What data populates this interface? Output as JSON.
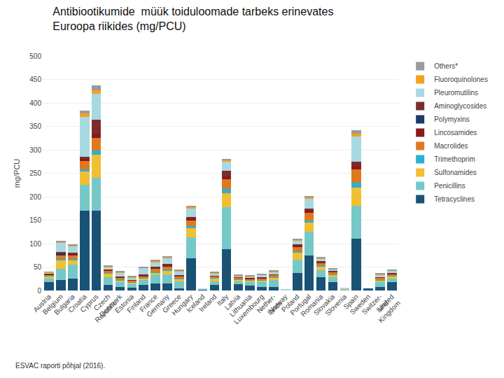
{
  "chart_data": {
    "type": "bar",
    "title": "Antibiootikumide  müük toiduloomade tarbeks erinevates\nEuroopa riikides (mg/PCU)",
    "ylabel": "mg/PCU",
    "annotations": [
      "ESVAC raporti põhjal (2016)."
    ],
    "categories": [
      "Austria",
      "Belgium",
      "Bulgaria",
      "Croatia",
      "Cyprus",
      "Czech\nRepublic",
      "Denmark",
      "Estonia",
      "Finland",
      "France",
      "Germany",
      "Greece",
      "Hungary",
      "Iceland",
      "Ireland",
      "Italy",
      "Latvia",
      "Lithuania",
      "Luxembourg",
      "Nether-\nlands",
      "Norway",
      "Poland",
      "Portugal",
      "Romania",
      "Slovakia",
      "Slovenia",
      "Spain",
      "Sweden",
      "Switzer-\nland",
      "United\nKingdom"
    ],
    "series": [
      {
        "name": "Tetracyclines",
        "color": "#1a5276",
        "values": [
          18,
          22,
          25,
          170,
          170,
          12,
          8,
          6,
          12,
          15,
          15,
          5,
          68,
          2,
          12,
          88,
          14,
          10,
          8,
          8,
          1,
          38,
          75,
          28,
          18,
          1,
          110,
          4,
          8,
          18
        ]
      },
      {
        "name": "Penicillins",
        "color": "#76c8c8",
        "values": [
          8,
          25,
          30,
          55,
          70,
          16,
          10,
          8,
          10,
          18,
          20,
          15,
          45,
          0,
          8,
          90,
          6,
          8,
          10,
          15,
          0,
          28,
          50,
          15,
          10,
          1,
          70,
          0,
          10,
          8
        ]
      },
      {
        "name": "Sulfonamides",
        "color": "#f0c030",
        "values": [
          5,
          18,
          10,
          28,
          50,
          8,
          4,
          3,
          4,
          5,
          8,
          5,
          20,
          0,
          6,
          30,
          3,
          3,
          4,
          4,
          0,
          14,
          20,
          8,
          5,
          1,
          40,
          0,
          4,
          4
        ]
      },
      {
        "name": "Trimethoprim",
        "color": "#2eafd4",
        "values": [
          1,
          2,
          2,
          5,
          8,
          2,
          2,
          1,
          1,
          2,
          2,
          1,
          5,
          0,
          1,
          8,
          1,
          1,
          1,
          2,
          0,
          3,
          5,
          2,
          2,
          0,
          10,
          0,
          1,
          1
        ]
      },
      {
        "name": "Macrolides",
        "color": "#e07820",
        "values": [
          2,
          8,
          8,
          18,
          28,
          5,
          4,
          3,
          4,
          7,
          7,
          4,
          12,
          0,
          3,
          22,
          3,
          3,
          3,
          4,
          0,
          9,
          16,
          6,
          4,
          1,
          28,
          0,
          4,
          4
        ]
      },
      {
        "name": "Lincosamides",
        "color": "#8b1a1a",
        "values": [
          1,
          2,
          2,
          4,
          8,
          1,
          1,
          1,
          1,
          2,
          2,
          1,
          3,
          0,
          1,
          5,
          1,
          1,
          1,
          1,
          0,
          3,
          4,
          2,
          1,
          0,
          8,
          0,
          1,
          1
        ]
      },
      {
        "name": "Polymyxins",
        "color": "#1a3a6a",
        "values": [
          0,
          2,
          0,
          0,
          0,
          0,
          0,
          0,
          0,
          0,
          0,
          0,
          0,
          0,
          0,
          0,
          0,
          0,
          0,
          0,
          0,
          0,
          0,
          0,
          0,
          0,
          0,
          0,
          0,
          0
        ]
      },
      {
        "name": "Aminoglycosides",
        "color": "#7b2d2d",
        "values": [
          1,
          3,
          3,
          5,
          30,
          1,
          1,
          1,
          2,
          2,
          2,
          2,
          3,
          0,
          1,
          12,
          1,
          1,
          1,
          1,
          0,
          3,
          5,
          2,
          2,
          0,
          8,
          0,
          1,
          1
        ]
      },
      {
        "name": "Pleuromutilins",
        "color": "#a8d8e0",
        "values": [
          2,
          20,
          15,
          85,
          55,
          5,
          8,
          5,
          14,
          10,
          14,
          8,
          20,
          1,
          5,
          20,
          2,
          2,
          5,
          5,
          1,
          8,
          20,
          5,
          3,
          1,
          55,
          0,
          5,
          5
        ]
      },
      {
        "name": "Fluoroquinolones",
        "color": "#f5a020",
        "values": [
          1,
          2,
          2,
          8,
          8,
          1,
          1,
          1,
          1,
          2,
          1,
          1,
          2,
          0,
          1,
          3,
          1,
          1,
          1,
          1,
          0,
          2,
          3,
          1,
          1,
          0,
          5,
          0,
          1,
          1
        ]
      },
      {
        "name": "Others*",
        "color": "#9a9a9a",
        "values": [
          1,
          2,
          2,
          5,
          10,
          2,
          2,
          2,
          2,
          2,
          2,
          2,
          3,
          0,
          2,
          3,
          2,
          2,
          2,
          2,
          0,
          3,
          3,
          2,
          2,
          0,
          8,
          0,
          2,
          2
        ]
      }
    ],
    "stacked": true,
    "ylim": [
      0,
      500
    ],
    "yticks": [
      0,
      50,
      100,
      150,
      200,
      250,
      300,
      350,
      400,
      450,
      500
    ],
    "grid": true,
    "legend": "right"
  }
}
